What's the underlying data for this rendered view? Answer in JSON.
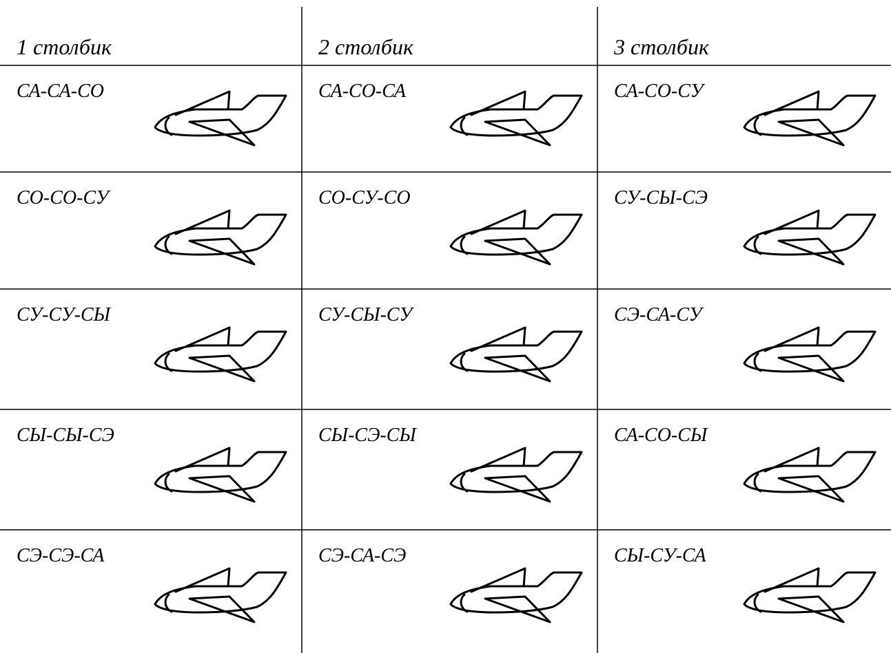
{
  "table": {
    "header": [
      "1 столбик",
      "2 столбик",
      "3 столбик"
    ],
    "rows": [
      [
        "СА-СА-СО",
        "СА-СО-СА",
        "СА-СО-СУ"
      ],
      [
        "СО-СО-СУ",
        "СО-СУ-СО",
        "СУ-СЫ-СЭ"
      ],
      [
        "СУ-СУ-СЫ",
        "СУ-СЫ-СУ",
        "СЭ-СА-СУ"
      ],
      [
        "СЫ-СЫ-СЭ",
        "СЫ-СЭ-СЫ",
        "СА-СО-СЫ"
      ],
      [
        "СЭ-СЭ-СА",
        "СЭ-СА-СЭ",
        "СЫ-СУ-СА"
      ]
    ]
  }
}
